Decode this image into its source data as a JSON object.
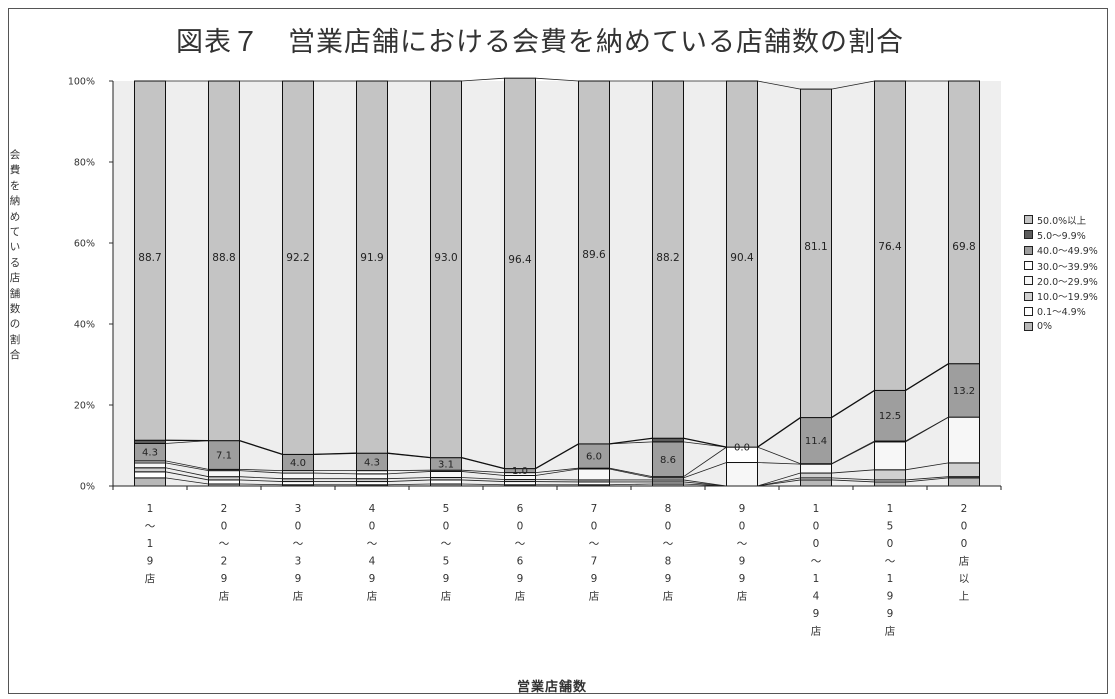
{
  "chart_data": {
    "type": "bar",
    "stacked": true,
    "title": "図表７　営業店舗における会費を納めている店舗数の割合",
    "ylabel": "会費を納めている店舗数の割合",
    "xlabel": "営業店舗数",
    "ylim": [
      0,
      100
    ],
    "yticks": [
      "0%",
      "20%",
      "40%",
      "60%",
      "80%",
      "100%"
    ],
    "grid": false,
    "legend_position": "right",
    "categories": [
      "1〜19店",
      "20〜29店",
      "30〜39店",
      "40〜49店",
      "50〜59店",
      "60〜69店",
      "70〜79店",
      "80〜89店",
      "90〜99店",
      "100〜149店",
      "150〜199店",
      "200店以上"
    ],
    "category_labels": [
      [
        "1",
        "〜",
        "1",
        "9",
        "店"
      ],
      [
        "2",
        "0",
        "〜",
        "2",
        "9",
        "店"
      ],
      [
        "3",
        "0",
        "〜",
        "3",
        "9",
        "店"
      ],
      [
        "4",
        "0",
        "〜",
        "4",
        "9",
        "店"
      ],
      [
        "5",
        "0",
        "〜",
        "5",
        "9",
        "店"
      ],
      [
        "6",
        "0",
        "〜",
        "6",
        "9",
        "店"
      ],
      [
        "7",
        "0",
        "〜",
        "7",
        "9",
        "店"
      ],
      [
        "8",
        "0",
        "〜",
        "8",
        "9",
        "店"
      ],
      [
        "9",
        "0",
        "〜",
        "9",
        "9",
        "店"
      ],
      [
        "1",
        "0",
        "0",
        "〜",
        "1",
        "4",
        "9",
        "店"
      ],
      [
        "1",
        "5",
        "0",
        "〜",
        "1",
        "9",
        "9",
        "店"
      ],
      [
        "2",
        "0",
        "0",
        "店",
        "以",
        "上"
      ]
    ],
    "series": [
      {
        "name": "0%",
        "color": "#b8b8b8",
        "values": [
          2.0,
          0.5,
          0.3,
          0.3,
          0.5,
          0.3,
          0.3,
          0.5,
          0.0,
          1.5,
          1.0,
          2.0
        ]
      },
      {
        "name": "0.1〜4.9%",
        "color": "#ffffff",
        "values": [
          1.5,
          1.0,
          0.8,
          0.8,
          1.0,
          0.8,
          0.7,
          0.5,
          0.0,
          0.5,
          0.5,
          0.3
        ]
      },
      {
        "name": "10.0〜19.9%",
        "color": "#d0d0d0",
        "values": [
          1.0,
          0.8,
          0.7,
          0.7,
          0.6,
          0.5,
          0.5,
          0.5,
          0.0,
          1.2,
          2.5,
          3.4
        ]
      },
      {
        "name": "20.0〜29.9%",
        "color": "#f7f7f7",
        "values": [
          1.2,
          1.5,
          1.4,
          1.2,
          1.5,
          1.0,
          2.7,
          0.5,
          5.8,
          2.2,
          6.9,
          11.3
        ]
      },
      {
        "name": "30.0〜39.9%",
        "color": "#ffffff",
        "values": [
          0.5,
          0.3,
          0.6,
          0.8,
          0.3,
          0.7,
          0.2,
          0.3,
          3.8,
          0.1,
          0.2,
          0.0
        ]
      },
      {
        "name": "40.0〜49.9%",
        "color": "#9e9e9e",
        "values": [
          4.3,
          7.1,
          4.0,
          4.3,
          3.1,
          1.0,
          6.0,
          8.6,
          0.0,
          11.4,
          12.5,
          13.2
        ]
      },
      {
        "name": "5.0〜9.9%",
        "color": "#5c5c5c",
        "values": [
          0.8,
          0.0,
          0.0,
          0.0,
          0.0,
          0.0,
          0.0,
          0.9,
          0.0,
          0.0,
          0.0,
          0.0
        ]
      },
      {
        "name": "50.0%以上",
        "color": "#c4c4c4",
        "values": [
          88.7,
          88.8,
          92.2,
          91.9,
          93.0,
          96.4,
          89.6,
          88.2,
          90.4,
          81.1,
          76.4,
          69.8
        ]
      }
    ],
    "data_labels": {
      "50.0%以上": [
        "88.7",
        "88.8",
        "92.2",
        "91.9",
        "93.0",
        "96.4",
        "89.6",
        "88.2",
        "90.4",
        "81.1",
        "76.4",
        "69.8"
      ],
      "40.0〜49.9%": [
        "4.3",
        "7.1",
        "4.0",
        "4.3",
        "3.1",
        "1.0",
        "6.0",
        "8.6",
        "0.0",
        "11.4",
        "12.5",
        "13.2"
      ]
    },
    "legend": [
      "50.0%以上",
      "5.0〜9.9%",
      "40.0〜49.9%",
      "30.0〜39.9%",
      "20.0〜29.9%",
      "10.0〜19.9%",
      "0.1〜4.9%",
      "0%"
    ]
  }
}
